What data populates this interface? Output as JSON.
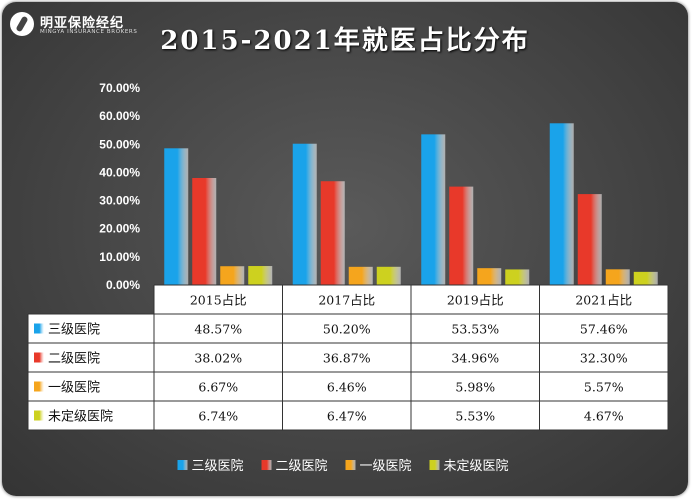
{
  "brand": {
    "name_cn": "明亚保险经纪",
    "name_en": "MINGYA INSURANCE BROKERS"
  },
  "chart_data": {
    "type": "bar",
    "title": "2015-2021年就医占比分布",
    "categories": [
      "2015占比",
      "2017占比",
      "2019占比",
      "2021占比"
    ],
    "series": [
      {
        "name": "三级医院",
        "color": "#1aa3ea",
        "values": [
          48.57,
          50.2,
          53.53,
          57.46
        ],
        "labels": [
          "48.57%",
          "50.20%",
          "53.53%",
          "57.46%"
        ]
      },
      {
        "name": "二级医院",
        "color": "#e8392a",
        "values": [
          38.02,
          36.87,
          34.96,
          32.3
        ],
        "labels": [
          "38.02%",
          "36.87%",
          "34.96%",
          "32.30%"
        ]
      },
      {
        "name": "一级医院",
        "color": "#f5a51d",
        "values": [
          6.67,
          6.46,
          5.98,
          5.57
        ],
        "labels": [
          "6.67%",
          "6.46%",
          "5.98%",
          "5.57%"
        ]
      },
      {
        "name": "未定级医院",
        "color": "#cdd11f",
        "values": [
          6.74,
          6.47,
          5.53,
          4.67
        ],
        "labels": [
          "6.74%",
          "6.47%",
          "5.53%",
          "4.67%"
        ]
      }
    ],
    "ylim": [
      0,
      70
    ],
    "yticks": [
      "0.00%",
      "10.00%",
      "20.00%",
      "30.00%",
      "40.00%",
      "50.00%",
      "60.00%",
      "70.00%"
    ],
    "legend": "bottom",
    "data_table": true
  }
}
